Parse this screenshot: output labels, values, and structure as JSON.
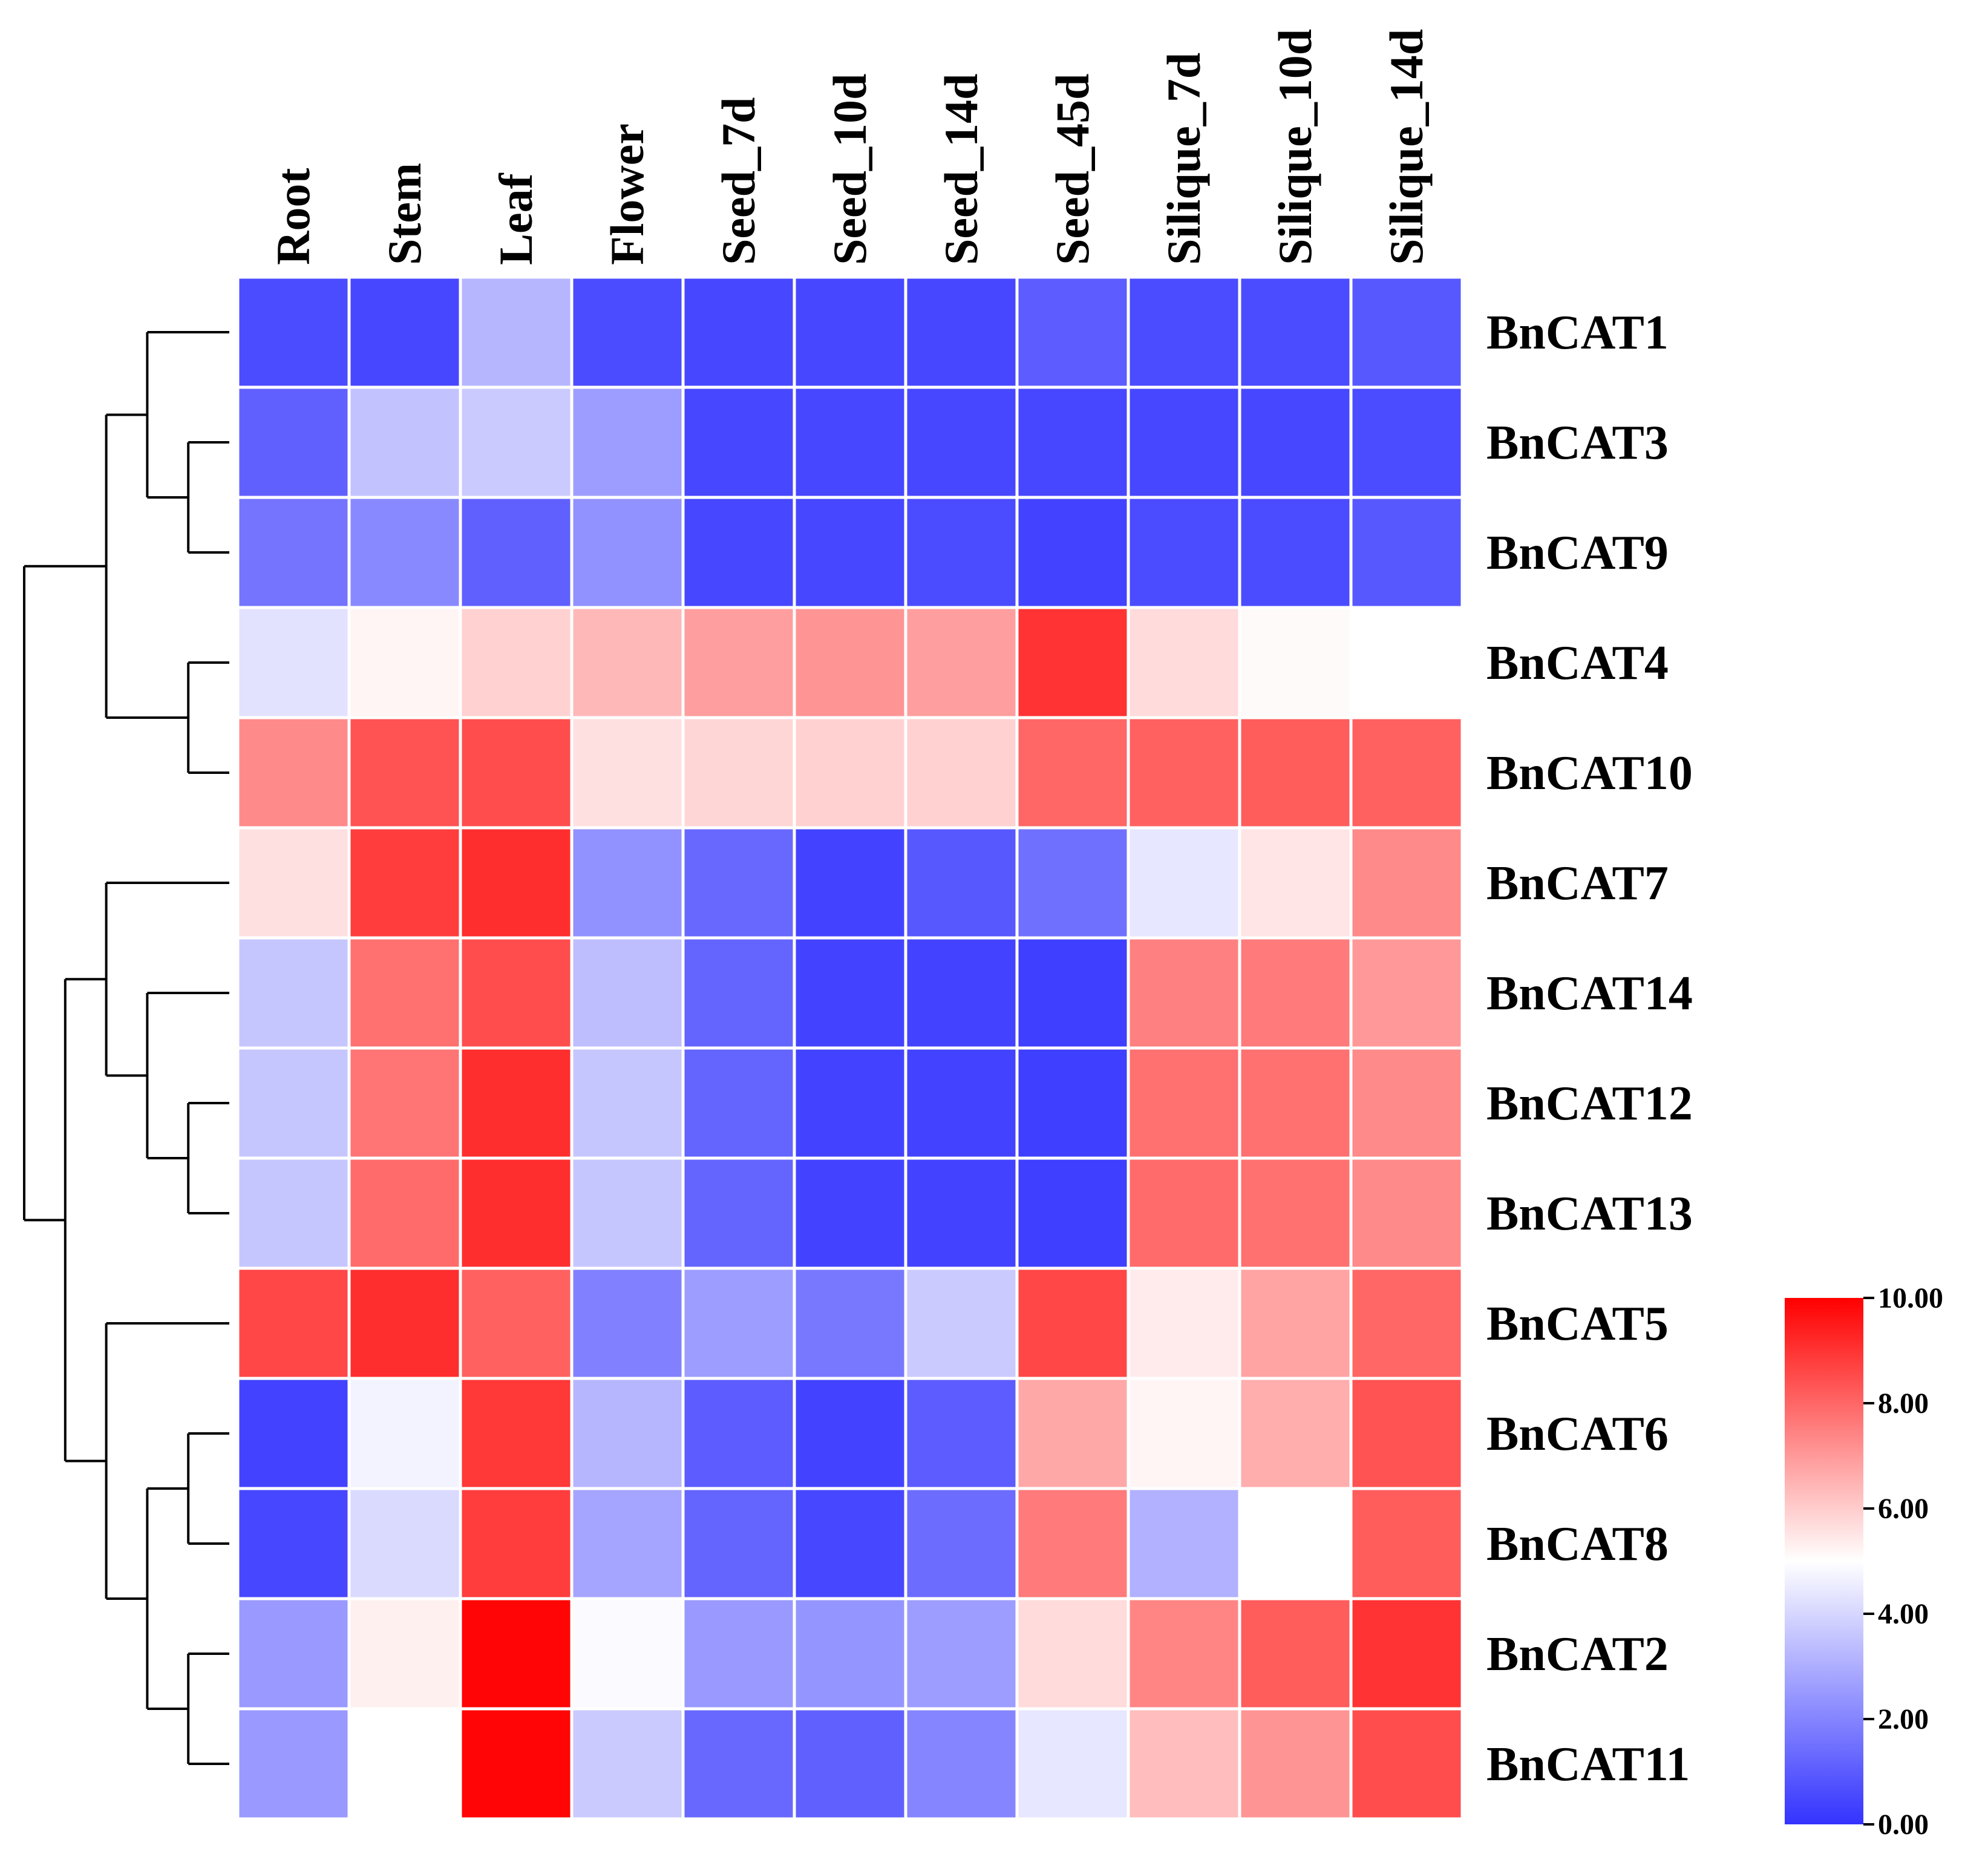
{
  "chart_data": {
    "type": "heatmap",
    "title": "",
    "columns": [
      "Root",
      "Stem",
      "Leaf",
      "Flower",
      "Seed_7d",
      "Seed_10d",
      "Seed_14d",
      "Seed_45d",
      "Silique_7d",
      "Silique_10d",
      "Silique_14d"
    ],
    "rows": [
      "BnCAT1",
      "BnCAT3",
      "BnCAT9",
      "BnCAT4",
      "BnCAT10",
      "BnCAT7",
      "BnCAT14",
      "BnCAT12",
      "BnCAT13",
      "BnCAT5",
      "BnCAT6",
      "BnCAT8",
      "BnCAT2",
      "BnCAT11"
    ],
    "values": [
      [
        0.6,
        0.5,
        3.2,
        0.6,
        0.5,
        0.5,
        0.5,
        1.0,
        0.6,
        0.6,
        0.9
      ],
      [
        1.1,
        3.5,
        3.7,
        2.6,
        0.5,
        0.5,
        0.5,
        0.5,
        0.5,
        0.5,
        0.6
      ],
      [
        1.6,
        2.1,
        1.1,
        2.3,
        0.5,
        0.5,
        0.6,
        0.4,
        0.6,
        0.6,
        0.9
      ],
      [
        4.3,
        5.2,
        5.9,
        6.4,
        6.9,
        7.1,
        6.9,
        9.0,
        5.7,
        5.1,
        5.0
      ],
      [
        7.3,
        8.4,
        8.5,
        5.6,
        5.8,
        5.9,
        5.9,
        8.0,
        8.1,
        8.2,
        8.1
      ],
      [
        5.6,
        8.8,
        9.1,
        2.3,
        1.3,
        0.4,
        0.9,
        1.5,
        4.4,
        5.5,
        7.3
      ],
      [
        3.6,
        7.8,
        8.5,
        3.4,
        1.2,
        0.4,
        0.4,
        0.3,
        7.5,
        7.6,
        7.0
      ],
      [
        3.6,
        7.7,
        9.1,
        3.6,
        1.2,
        0.4,
        0.4,
        0.3,
        7.8,
        7.8,
        7.3
      ],
      [
        3.6,
        7.9,
        9.1,
        3.6,
        1.2,
        0.4,
        0.4,
        0.3,
        7.9,
        7.8,
        7.3
      ],
      [
        8.6,
        9.1,
        8.1,
        1.9,
        2.6,
        1.7,
        3.7,
        8.6,
        5.4,
        6.8,
        8.0
      ],
      [
        0.4,
        4.7,
        8.9,
        3.2,
        1.0,
        0.4,
        1.0,
        6.7,
        5.2,
        6.6,
        8.4
      ],
      [
        0.5,
        4.1,
        8.8,
        2.8,
        1.2,
        0.5,
        1.4,
        7.6,
        3.1,
        5.0,
        8.2
      ],
      [
        2.5,
        5.3,
        9.9,
        4.9,
        2.5,
        2.4,
        2.6,
        5.7,
        7.4,
        8.2,
        9.0
      ],
      [
        2.5,
        5.0,
        9.9,
        3.7,
        1.3,
        1.1,
        2.0,
        4.4,
        6.3,
        7.1,
        8.5
      ]
    ],
    "legend": {
      "min": 0,
      "max": 10,
      "ticks": [
        "0.00",
        "2.00",
        "4.00",
        "6.00",
        "8.00",
        "10.00"
      ],
      "colors": {
        "low": "#3333ff",
        "mid": "#ffffff",
        "high": "#ff0000"
      },
      "placement": "right-bottom"
    },
    "dendrogram": {
      "side": "left",
      "tree": [
        [
          [
            0,
            [
              1,
              2
            ]
          ],
          [
            3,
            4
          ]
        ],
        [
          [
            5,
            [
              6,
              [
                7,
                8
              ]
            ]
          ],
          [
            9,
            [
              [
                10,
                11
              ],
              [
                12,
                13
              ]
            ]
          ]
        ]
      ]
    }
  }
}
